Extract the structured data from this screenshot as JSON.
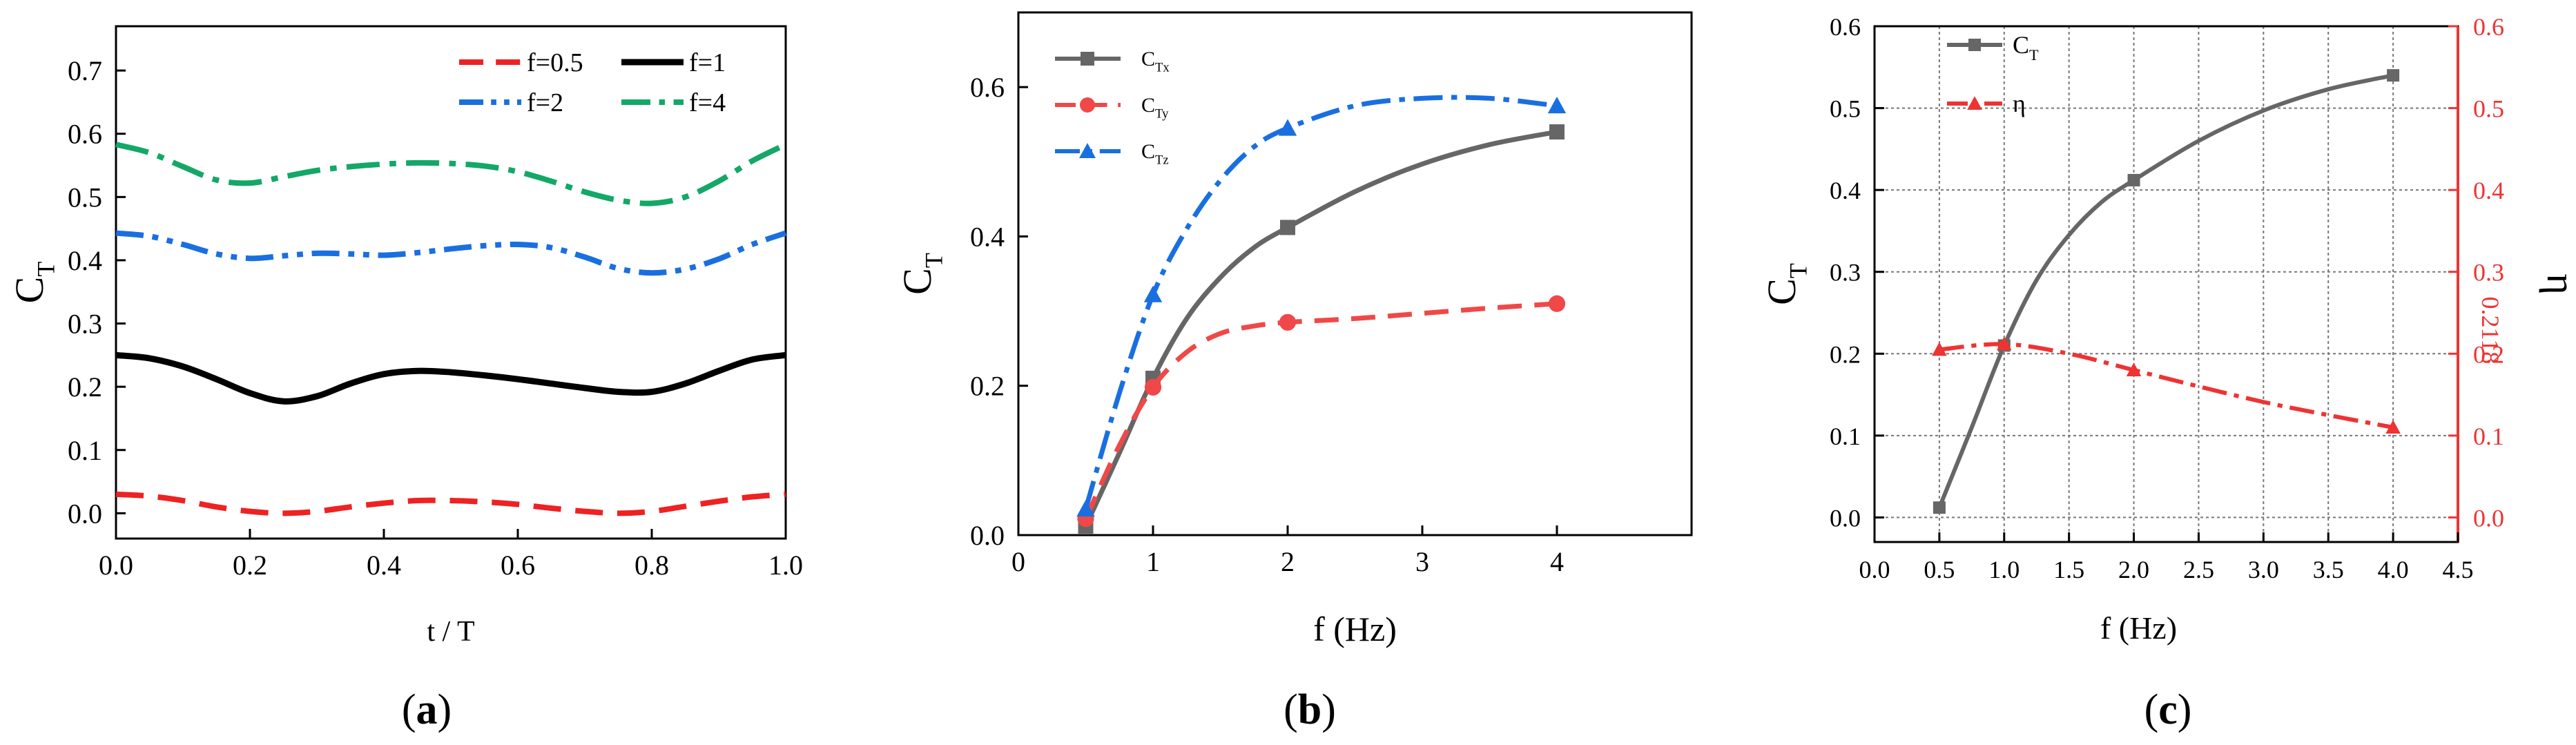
{
  "colors": {
    "red": "#ee2222",
    "black": "#000000",
    "blue": "#1a6fe0",
    "green": "#13a867",
    "gray": "#606060",
    "gray_b": "#666666",
    "red_b": "#f04848",
    "blue_b": "#1a6fe0",
    "red_c": "#ee3333",
    "gray_c": "#666666"
  },
  "chart_data": [
    {
      "panel": "(a)",
      "panel_letter": "a",
      "type": "line",
      "xlabel": "t / T",
      "ylabel_main": "C",
      "ylabel_sub": "T",
      "xlim": [
        0,
        1
      ],
      "ylim": [
        -0.04,
        0.77
      ],
      "x_ticks": [
        "0.0",
        "0.2",
        "0.4",
        "0.6",
        "0.8",
        "1.0"
      ],
      "x_tick_values": [
        0,
        0.2,
        0.4,
        0.6,
        0.8,
        1.0
      ],
      "y_ticks": [
        "0.0",
        "0.1",
        "0.2",
        "0.3",
        "0.4",
        "0.5",
        "0.6",
        "0.7"
      ],
      "y_tick_values": [
        0,
        0.1,
        0.2,
        0.3,
        0.4,
        0.5,
        0.6,
        0.7
      ],
      "series": [
        {
          "name": "f=0.5",
          "style": "dash",
          "color_key": "red",
          "x": [
            0,
            0.05,
            0.1,
            0.15,
            0.2,
            0.25,
            0.3,
            0.35,
            0.4,
            0.45,
            0.5,
            0.55,
            0.6,
            0.65,
            0.7,
            0.75,
            0.8,
            0.85,
            0.9,
            0.95,
            1.0
          ],
          "y": [
            0.03,
            0.027,
            0.02,
            0.01,
            0.003,
            0.0,
            0.003,
            0.01,
            0.016,
            0.02,
            0.02,
            0.018,
            0.014,
            0.008,
            0.003,
            0.0,
            0.003,
            0.011,
            0.019,
            0.026,
            0.03
          ]
        },
        {
          "name": "f=1",
          "style": "solid",
          "color_key": "black",
          "x": [
            0,
            0.05,
            0.1,
            0.15,
            0.2,
            0.25,
            0.3,
            0.35,
            0.4,
            0.45,
            0.5,
            0.55,
            0.6,
            0.65,
            0.7,
            0.75,
            0.8,
            0.85,
            0.9,
            0.95,
            1.0
          ],
          "y": [
            0.25,
            0.245,
            0.232,
            0.212,
            0.19,
            0.177,
            0.185,
            0.205,
            0.22,
            0.225,
            0.223,
            0.218,
            0.212,
            0.205,
            0.198,
            0.192,
            0.192,
            0.205,
            0.225,
            0.243,
            0.25
          ]
        },
        {
          "name": "f=2",
          "style": "dashdotdot",
          "color_key": "blue",
          "x": [
            0,
            0.05,
            0.1,
            0.15,
            0.2,
            0.25,
            0.3,
            0.35,
            0.4,
            0.45,
            0.5,
            0.55,
            0.6,
            0.65,
            0.7,
            0.75,
            0.8,
            0.85,
            0.9,
            0.95,
            1.0
          ],
          "y": [
            0.443,
            0.438,
            0.425,
            0.41,
            0.403,
            0.407,
            0.411,
            0.41,
            0.408,
            0.412,
            0.418,
            0.423,
            0.425,
            0.42,
            0.405,
            0.387,
            0.38,
            0.386,
            0.402,
            0.425,
            0.443
          ]
        },
        {
          "name": "f=4",
          "style": "dashdot",
          "color_key": "green",
          "x": [
            0,
            0.05,
            0.1,
            0.15,
            0.2,
            0.25,
            0.3,
            0.35,
            0.4,
            0.45,
            0.5,
            0.55,
            0.6,
            0.65,
            0.7,
            0.75,
            0.8,
            0.85,
            0.9,
            0.95,
            1.0
          ],
          "y": [
            0.583,
            0.57,
            0.548,
            0.527,
            0.522,
            0.532,
            0.542,
            0.548,
            0.552,
            0.554,
            0.553,
            0.549,
            0.54,
            0.525,
            0.508,
            0.495,
            0.49,
            0.5,
            0.525,
            0.557,
            0.583
          ]
        }
      ],
      "legend": [
        "f=0.5",
        "f=1",
        "f=2",
        "f=4"
      ]
    },
    {
      "panel": "(b)",
      "panel_letter": "b",
      "type": "line",
      "xlabel": "f  (Hz)",
      "ylabel_main": "C",
      "ylabel_sub": "T",
      "xlim": [
        0,
        5
      ],
      "ylim": [
        0,
        0.7
      ],
      "x_ticks": [
        "0",
        "1",
        "2",
        "3",
        "4"
      ],
      "x_tick_values": [
        0,
        1,
        2,
        3,
        4
      ],
      "y_ticks": [
        "0.0",
        "0.2",
        "0.4",
        "0.6"
      ],
      "y_tick_values": [
        0,
        0.2,
        0.4,
        0.6
      ],
      "series": [
        {
          "name_main": "C",
          "name_sub": "Tx",
          "style": "solid",
          "marker": "square",
          "color_key": "gray_b",
          "x": [
            0.5,
            1,
            2,
            4
          ],
          "y": [
            0.012,
            0.21,
            0.412,
            0.54
          ],
          "curve_x": [
            0.5,
            0.75,
            1.0,
            1.25,
            1.5,
            1.75,
            2.0,
            2.5,
            3.0,
            3.5,
            4.0
          ],
          "curve_y": [
            0.012,
            0.11,
            0.21,
            0.29,
            0.345,
            0.385,
            0.412,
            0.46,
            0.497,
            0.523,
            0.54
          ]
        },
        {
          "name_main": "C",
          "name_sub": "Ty",
          "style": "dash",
          "marker": "circle",
          "color_key": "red_b",
          "x": [
            0.5,
            1,
            2,
            4
          ],
          "y": [
            0.022,
            0.198,
            0.285,
            0.31
          ],
          "curve_x": [
            0.5,
            0.75,
            1.0,
            1.25,
            1.5,
            1.75,
            2.0,
            2.5,
            3.0,
            3.5,
            4.0
          ],
          "curve_y": [
            0.022,
            0.12,
            0.198,
            0.245,
            0.27,
            0.28,
            0.285,
            0.29,
            0.297,
            0.304,
            0.31
          ]
        },
        {
          "name_main": "C",
          "name_sub": "Tz",
          "style": "dashdot",
          "marker": "triangle",
          "color_key": "blue_b",
          "x": [
            0.5,
            1,
            2,
            4
          ],
          "y": [
            0.035,
            0.322,
            0.545,
            0.575
          ],
          "curve_x": [
            0.5,
            0.75,
            1.0,
            1.25,
            1.5,
            1.75,
            2.0,
            2.5,
            3.0,
            3.5,
            4.0
          ],
          "curve_y": [
            0.035,
            0.19,
            0.322,
            0.41,
            0.475,
            0.52,
            0.545,
            0.575,
            0.585,
            0.585,
            0.575
          ]
        }
      ]
    },
    {
      "panel": "(c)",
      "panel_letter": "c",
      "type": "line",
      "xlabel": "f (Hz)",
      "ylabel_main": "C",
      "ylabel_sub": "T",
      "ylabel_right": "η",
      "xlim": [
        0,
        4.5
      ],
      "ylim": [
        -0.03,
        0.6
      ],
      "grid": true,
      "x_ticks": [
        "0.0",
        "0.5",
        "1.0",
        "1.5",
        "2.0",
        "2.5",
        "3.0",
        "3.5",
        "4.0",
        "4.5"
      ],
      "x_tick_values": [
        0,
        0.5,
        1.0,
        1.5,
        2.0,
        2.5,
        3.0,
        3.5,
        4.0,
        4.5
      ],
      "y_ticks": [
        "0.0",
        "0.1",
        "0.2",
        "0.3",
        "0.4",
        "0.5",
        "0.6"
      ],
      "y_tick_values": [
        0,
        0.1,
        0.2,
        0.3,
        0.4,
        0.5,
        0.6
      ],
      "y2_ticks": [
        "0.0",
        "0.1",
        "0.2",
        "0.3",
        "0.4",
        "0.5",
        "0.6"
      ],
      "annotation": "0.2118",
      "annotation_value": 0.2118,
      "series": [
        {
          "name_main": "C",
          "name_sub": "T",
          "style": "solid",
          "marker": "square",
          "color_key": "gray_c",
          "x": [
            0.5,
            1,
            2,
            4
          ],
          "y": [
            0.012,
            0.21,
            0.412,
            0.54
          ],
          "curve_x": [
            0.5,
            0.75,
            1.0,
            1.25,
            1.5,
            1.75,
            2.0,
            2.5,
            3.0,
            3.5,
            4.0
          ],
          "curve_y": [
            0.012,
            0.11,
            0.21,
            0.29,
            0.345,
            0.385,
            0.412,
            0.46,
            0.497,
            0.523,
            0.54
          ]
        },
        {
          "name_main": "η",
          "name_sub": "",
          "style": "dashdot",
          "marker": "triangle",
          "color_key": "red_c",
          "x": [
            0.5,
            1,
            2,
            4
          ],
          "y": [
            0.205,
            0.2118,
            0.18,
            0.11
          ],
          "curve_x": [
            0.5,
            1.0,
            1.5,
            2.0,
            2.5,
            3.0,
            3.5,
            4.0
          ],
          "curve_y": [
            0.205,
            0.2118,
            0.2,
            0.18,
            0.16,
            0.141,
            0.125,
            0.11
          ]
        }
      ]
    }
  ]
}
